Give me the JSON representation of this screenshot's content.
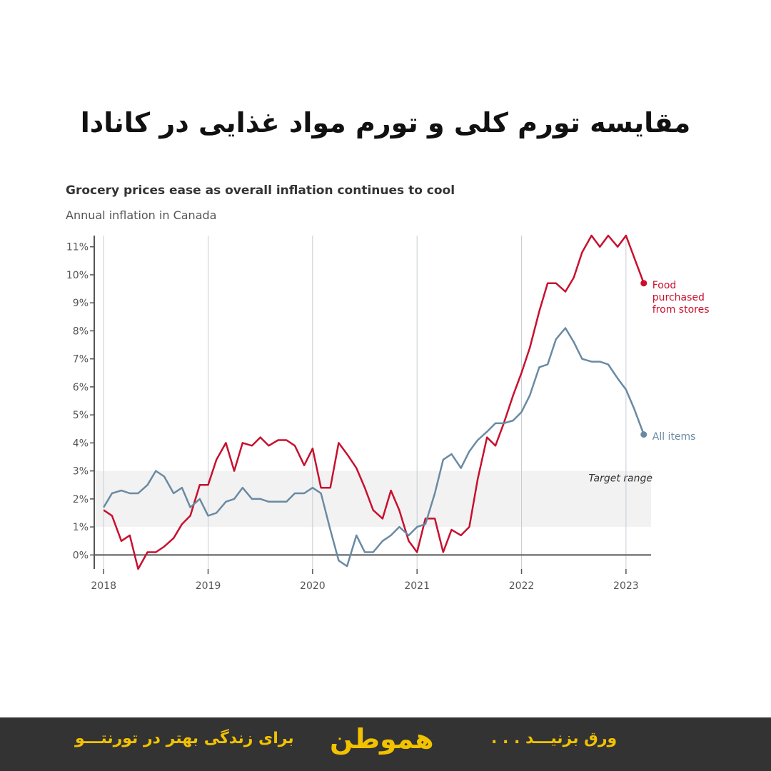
{
  "header": {
    "title": "مقایسه تورم کلی و تورم مواد غذایی در کانادا"
  },
  "footer": {
    "slogan": "برای زندگی بهتر در تورنتـــو",
    "logo": "هموطن",
    "swipe": "ورق بزنیـــد . . ."
  },
  "chart_data": {
    "type": "line",
    "title": "Grocery prices ease as overall inflation continues to cool",
    "subtitle": "Annual inflation in Canada",
    "x": [
      2018,
      2018.08,
      2018.17,
      2018.25,
      2018.33,
      2018.42,
      2018.5,
      2018.58,
      2018.67,
      2018.75,
      2018.83,
      2018.92,
      2019,
      2019.08,
      2019.17,
      2019.25,
      2019.33,
      2019.42,
      2019.5,
      2019.58,
      2019.67,
      2019.75,
      2019.83,
      2019.92,
      2020,
      2020.08,
      2020.17,
      2020.25,
      2020.33,
      2020.42,
      2020.5,
      2020.58,
      2020.67,
      2020.75,
      2020.83,
      2020.92,
      2021,
      2021.08,
      2021.17,
      2021.25,
      2021.33,
      2021.42,
      2021.5,
      2021.58,
      2021.67,
      2021.75,
      2021.83,
      2021.92,
      2022,
      2022.08,
      2022.17,
      2022.25,
      2022.33,
      2022.42,
      2022.5,
      2022.58,
      2022.67,
      2022.75,
      2022.83,
      2022.92,
      2023,
      2023.08,
      2023.17
    ],
    "series": [
      {
        "name": "Food purchased from stores",
        "color": "#c8102e",
        "values": [
          1.6,
          1.4,
          0.5,
          0.7,
          -0.5,
          0.1,
          0.1,
          0.3,
          0.6,
          1.1,
          1.4,
          2.5,
          2.5,
          3.4,
          4.0,
          3.0,
          4.0,
          3.9,
          4.2,
          3.9,
          4.1,
          4.1,
          3.9,
          3.2,
          3.8,
          2.4,
          2.4,
          4.0,
          3.6,
          3.1,
          2.4,
          1.6,
          1.3,
          2.3,
          1.6,
          0.5,
          0.1,
          1.3,
          1.3,
          0.1,
          0.9,
          0.7,
          1.0,
          2.7,
          4.2,
          3.9,
          4.7,
          5.7,
          6.5,
          7.4,
          8.7,
          9.7,
          9.7,
          9.4,
          9.9,
          10.8,
          11.4,
          11.0,
          11.4,
          11.0,
          11.4,
          10.6,
          9.7
        ]
      },
      {
        "name": "All items",
        "color": "#6a8aa3",
        "values": [
          1.7,
          2.2,
          2.3,
          2.2,
          2.2,
          2.5,
          3.0,
          2.8,
          2.2,
          2.4,
          1.7,
          2.0,
          1.4,
          1.5,
          1.9,
          2.0,
          2.4,
          2.0,
          2.0,
          1.9,
          1.9,
          1.9,
          2.2,
          2.2,
          2.4,
          2.2,
          0.9,
          -0.2,
          -0.4,
          0.7,
          0.1,
          0.1,
          0.5,
          0.7,
          1.0,
          0.7,
          1.0,
          1.1,
          2.2,
          3.4,
          3.6,
          3.1,
          3.7,
          4.1,
          4.4,
          4.7,
          4.7,
          4.8,
          5.1,
          5.7,
          6.7,
          6.8,
          7.7,
          8.1,
          7.6,
          7.0,
          6.9,
          6.9,
          6.8,
          6.3,
          5.9,
          5.2,
          4.3
        ]
      }
    ],
    "xlim": [
      2017.91,
      2023.24
    ],
    "xticks": [
      2018,
      2019,
      2020,
      2021,
      2022,
      2023
    ],
    "ylim": [
      -0.5,
      11.4
    ],
    "yticks": [
      {
        "value": 0,
        "label": "0%"
      },
      {
        "value": 1,
        "label": "1%"
      },
      {
        "value": 2,
        "label": "2%"
      },
      {
        "value": 3,
        "label": "3%"
      },
      {
        "value": 4,
        "label": "4%"
      },
      {
        "value": 5,
        "label": "5%"
      },
      {
        "value": 6,
        "label": "6%"
      },
      {
        "value": 7,
        "label": "7%"
      },
      {
        "value": 8,
        "label": "8%"
      },
      {
        "value": 9,
        "label": "9%"
      },
      {
        "value": 10,
        "label": "10%"
      },
      {
        "value": 11,
        "label": "11%"
      }
    ],
    "grid": "x",
    "target_range": [
      1,
      3
    ],
    "target_label": "Target range"
  }
}
